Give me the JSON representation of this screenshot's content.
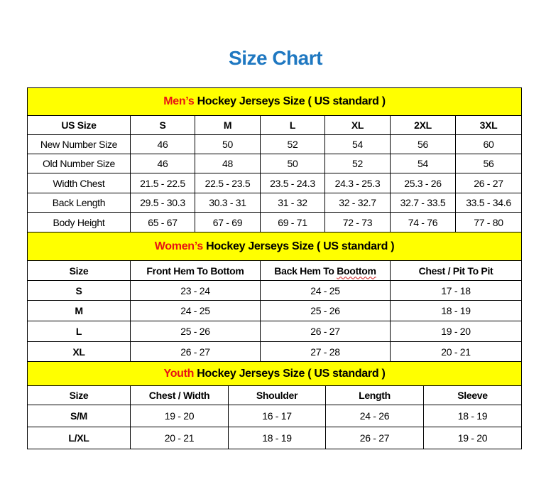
{
  "title": "Size Chart",
  "colors": {
    "title": "#1f78c1",
    "band": "#ffff00",
    "highlight": "#e81414"
  },
  "sections": [
    {
      "key": "men",
      "band_highlight": "Men’s",
      "band_rest": " Hockey Jerseys Size ( US standard )",
      "headers": [
        "US Size",
        "S",
        "M",
        "L",
        "XL",
        "2XL",
        "3XL"
      ],
      "rows": [
        [
          "New Number Size",
          "46",
          "50",
          "52",
          "54",
          "56",
          "60"
        ],
        [
          "Old Number Size",
          "46",
          "48",
          "50",
          "52",
          "54",
          "56"
        ],
        [
          "Width Chest",
          "21.5 - 22.5",
          "22.5 - 23.5",
          "23.5 - 24.3",
          "24.3 - 25.3",
          "25.3 - 26",
          "26 - 27"
        ],
        [
          "Back Length",
          "29.5 - 30.3",
          "30.3 - 31",
          "31 - 32",
          "32 - 32.7",
          "32.7 - 33.5",
          "33.5 - 34.6"
        ],
        [
          "Body Height",
          "65 - 67",
          "67 - 69",
          "69 - 71",
          "72 - 73",
          "74 - 76",
          "77 - 80"
        ]
      ]
    },
    {
      "key": "women",
      "band_highlight": "Women’s",
      "band_rest": " Hockey Jerseys Size ( US standard )",
      "headers": [
        "Size",
        "Front Hem To Bottom",
        "Back Hem To Boottom",
        "Chest / Pit To Pit"
      ],
      "rows": [
        [
          "S",
          "23 - 24",
          "24 - 25",
          "17 - 18"
        ],
        [
          "M",
          "24 - 25",
          "25 - 26",
          "18 - 19"
        ],
        [
          "L",
          "25 - 26",
          "26 - 27",
          "19 - 20"
        ],
        [
          "XL",
          "26 - 27",
          "27 - 28",
          "20 - 21"
        ]
      ]
    },
    {
      "key": "youth",
      "band_highlight": "Youth",
      "band_rest": " Hockey Jerseys Size ( US standard )",
      "headers": [
        "Size",
        "Chest / Width",
        "Shoulder",
        "Length",
        "Sleeve"
      ],
      "rows": [
        [
          "S/M",
          "19 - 20",
          "16 - 17",
          "24 - 26",
          "18 - 19"
        ],
        [
          "L/XL",
          "20 - 21",
          "18 - 19",
          "26 - 27",
          "19 - 20"
        ]
      ]
    }
  ]
}
